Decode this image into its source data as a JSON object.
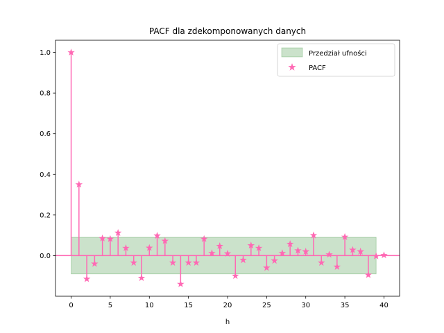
{
  "chart_data": {
    "type": "stem",
    "title": "PACF dla zdekomponowanych danych",
    "xlabel": "h",
    "ylabel": "",
    "xlim": [
      -2,
      42
    ],
    "ylim": [
      -0.2,
      1.06
    ],
    "xticks": [
      0,
      5,
      10,
      15,
      20,
      25,
      30,
      35,
      40
    ],
    "yticks": [
      0.0,
      0.2,
      0.4,
      0.6,
      0.8,
      1.0
    ],
    "ytick_labels": [
      "0.0",
      "0.2",
      "0.4",
      "0.6",
      "0.8",
      "1.0"
    ],
    "grid": false,
    "legend_position": "top-right",
    "confidence_band": {
      "name": "Przedział ufności",
      "x_range": [
        0,
        39
      ],
      "lower": -0.09,
      "upper": 0.09,
      "color": "#2e8b2e"
    },
    "series": [
      {
        "name": "PACF",
        "color": "#ff69b4",
        "marker": "star",
        "x": [
          0,
          1,
          2,
          3,
          4,
          5,
          6,
          7,
          8,
          9,
          10,
          11,
          12,
          13,
          14,
          15,
          16,
          17,
          18,
          19,
          20,
          21,
          22,
          23,
          24,
          25,
          26,
          27,
          28,
          29,
          30,
          31,
          32,
          33,
          34,
          35,
          36,
          37,
          38,
          39,
          40
        ],
        "values": [
          1.0,
          0.35,
          -0.115,
          -0.04,
          0.085,
          0.082,
          0.112,
          0.037,
          -0.035,
          -0.11,
          0.038,
          0.098,
          0.072,
          -0.035,
          -0.14,
          -0.035,
          -0.035,
          0.082,
          0.012,
          0.047,
          0.01,
          -0.1,
          -0.022,
          0.05,
          0.037,
          -0.06,
          -0.025,
          0.012,
          0.057,
          0.025,
          0.02,
          0.1,
          -0.035,
          0.005,
          -0.055,
          0.092,
          0.028,
          0.02,
          -0.095,
          -0.003,
          0.002
        ]
      }
    ]
  }
}
